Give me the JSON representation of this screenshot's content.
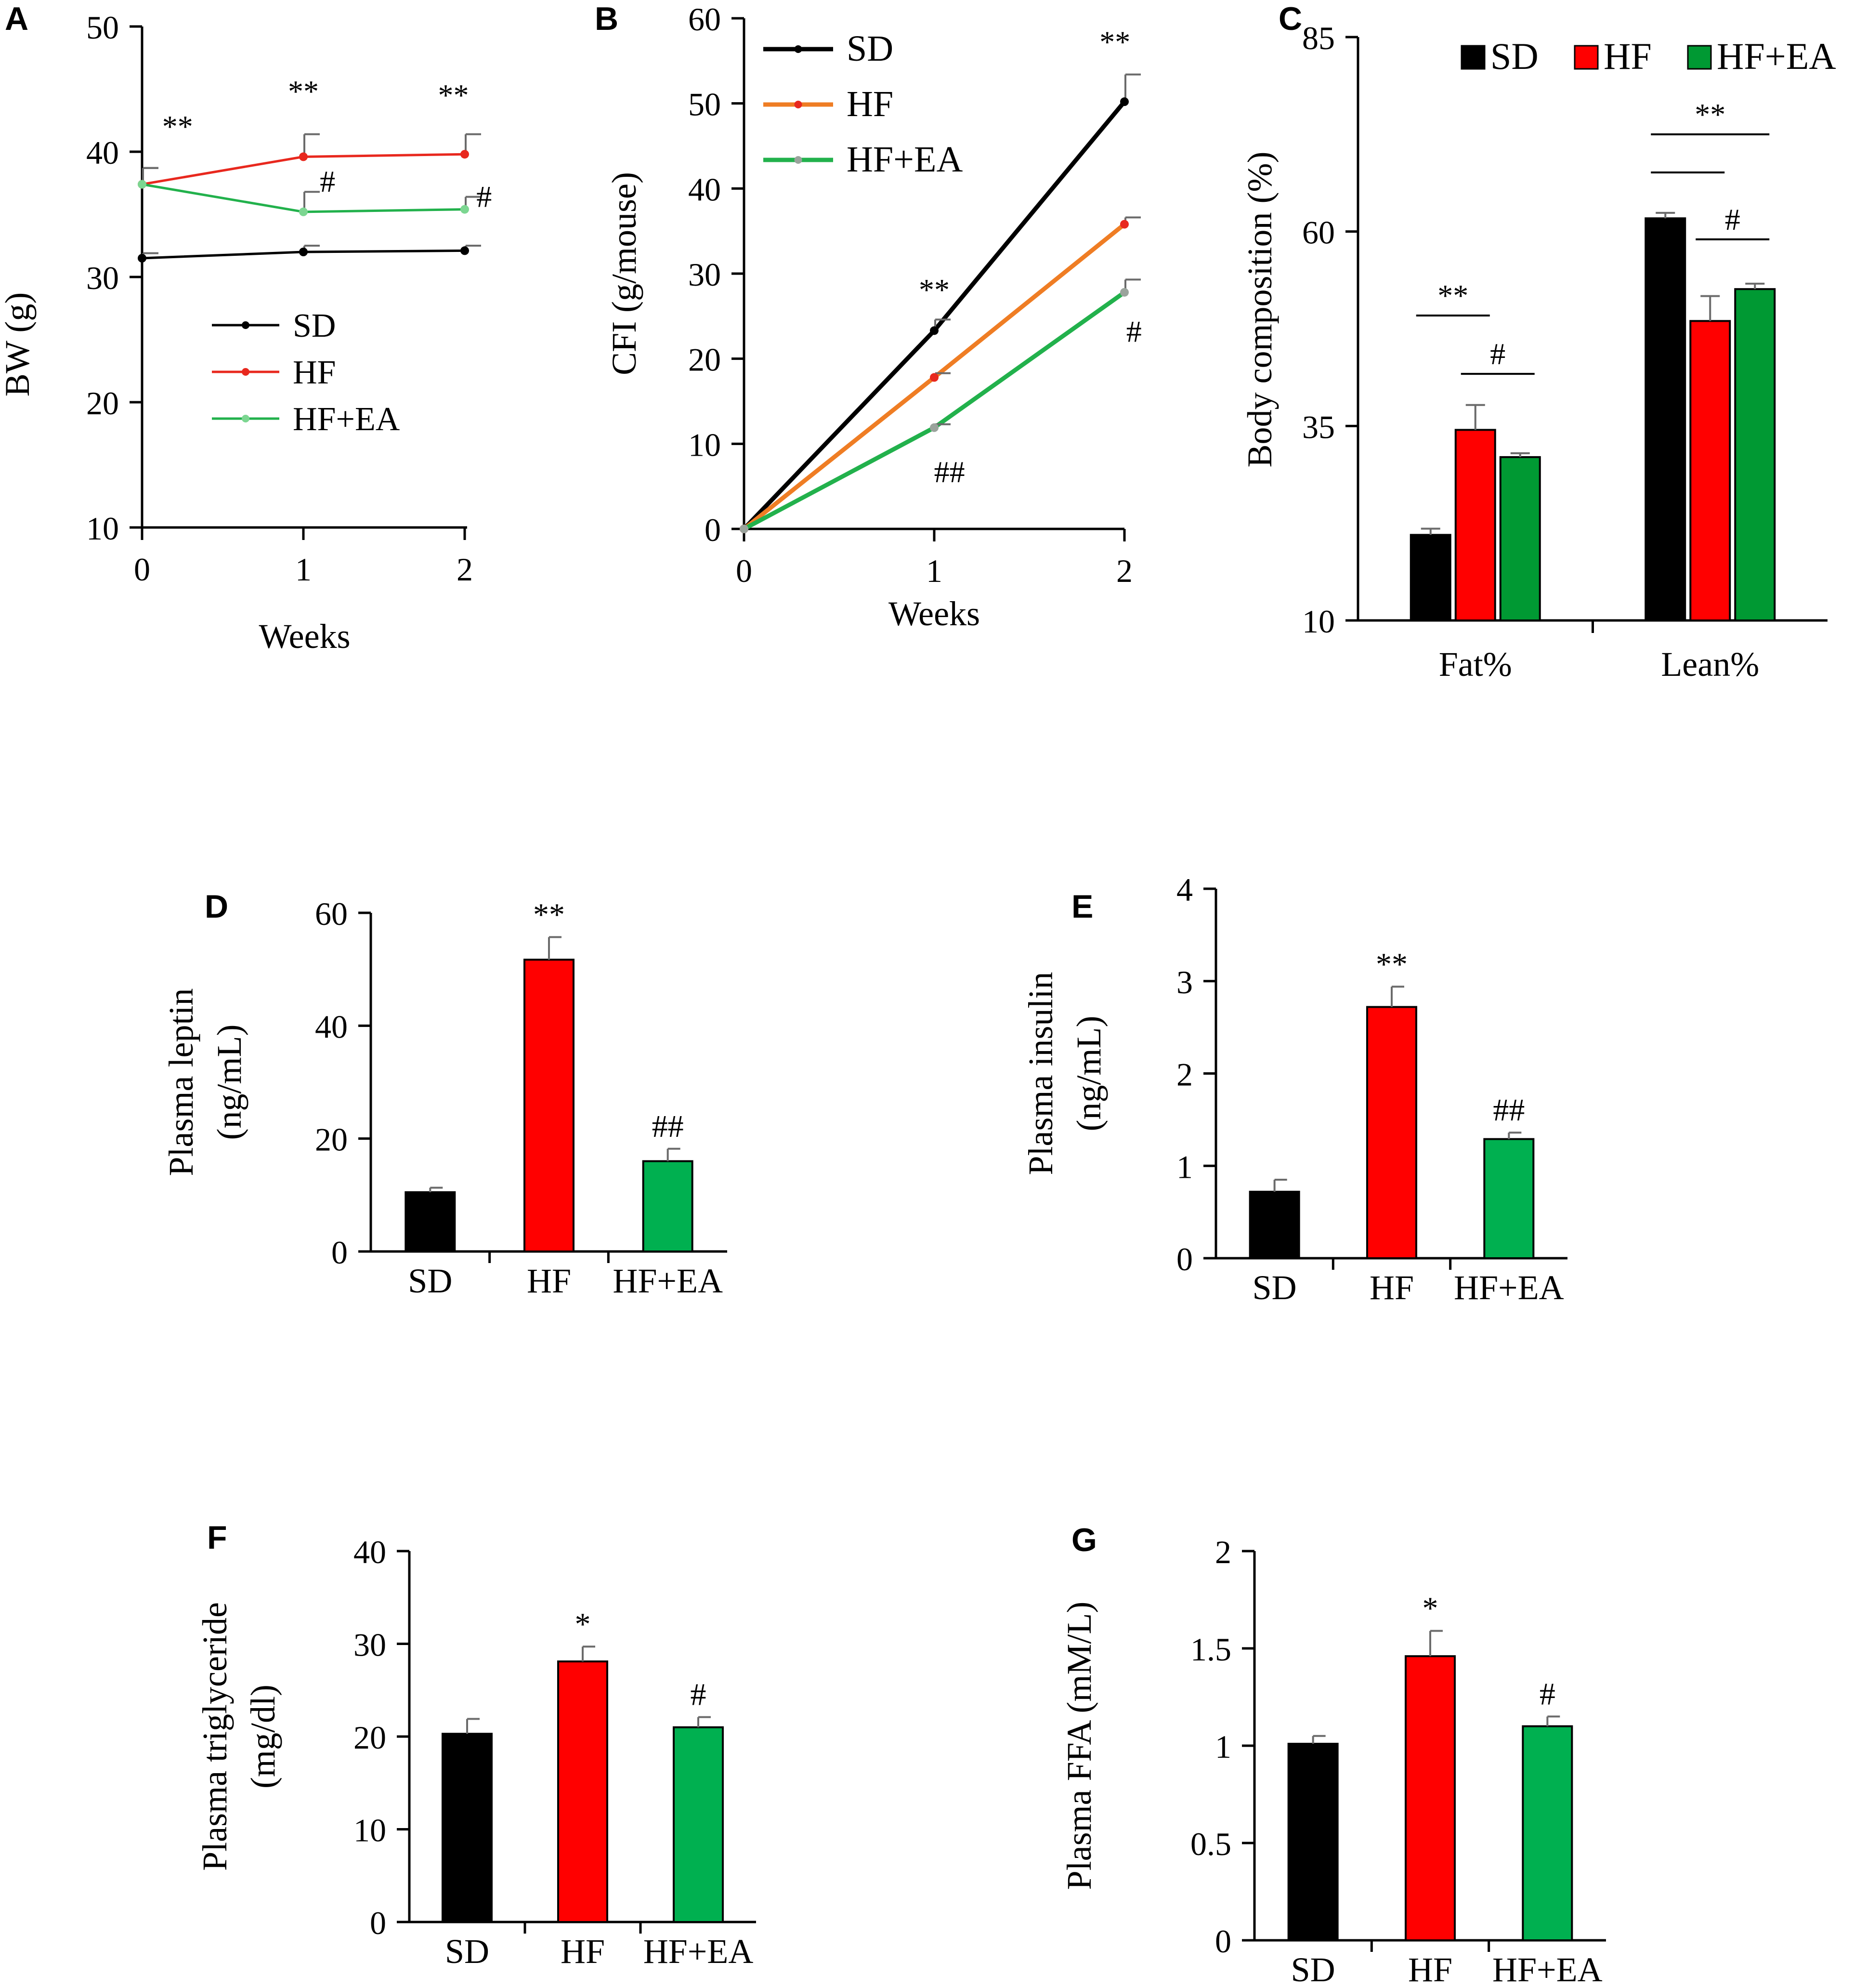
{
  "chart_data": [
    {
      "id": "A",
      "type": "line",
      "panel_label": "A",
      "ylabel": "BW (g)",
      "xlabel": "Weeks",
      "x": [
        0,
        1,
        2
      ],
      "xticks": [
        "0",
        "1",
        "2"
      ],
      "ylim": [
        10,
        50
      ],
      "yticks": [
        10,
        20,
        30,
        40,
        50
      ],
      "series": [
        {
          "name": "SD",
          "color": "#000000",
          "values": [
            31.5,
            32.0,
            32.1
          ],
          "err": [
            0.4,
            0.5,
            0.4
          ],
          "marker": "#000000"
        },
        {
          "name": "HF",
          "color": "#e8281e",
          "values": [
            37.4,
            39.6,
            39.8
          ],
          "err": [
            1.3,
            1.8,
            1.6
          ],
          "marker": "#e8281e"
        },
        {
          "name": "HF+EA",
          "color": "#22b14c",
          "values": [
            37.4,
            35.2,
            35.4
          ],
          "err": [
            1.3,
            1.6,
            1.0
          ],
          "marker": "#7cd691"
        }
      ],
      "annotations": [
        {
          "text": "**",
          "x": 0.22,
          "y": 41.2
        },
        {
          "text": "**",
          "x": 1.0,
          "y": 44.0
        },
        {
          "text": "**",
          "x": 1.93,
          "y": 43.7
        },
        {
          "text": "#",
          "x": 1.15,
          "y": 36.8
        },
        {
          "text": "#",
          "x": 2.12,
          "y": 35.6
        }
      ]
    },
    {
      "id": "B",
      "type": "line",
      "panel_label": "B",
      "ylabel": "CFI (g/mouse)",
      "xlabel": "Weeks",
      "x": [
        0,
        1,
        2
      ],
      "xticks": [
        "0",
        "1",
        "2"
      ],
      "ylim": [
        0,
        60
      ],
      "yticks": [
        0,
        10,
        20,
        30,
        40,
        50,
        60
      ],
      "series": [
        {
          "name": "SD",
          "color": "#000000",
          "values": [
            0,
            23.3,
            50.2
          ],
          "err": [
            0,
            1.3,
            3.2
          ],
          "marker": "#000000"
        },
        {
          "name": "HF",
          "color": "#ef7d24",
          "values": [
            0,
            17.8,
            35.8
          ],
          "err": [
            0,
            0.5,
            0.8
          ],
          "marker": "#e8281e"
        },
        {
          "name": "HF+EA",
          "color": "#22b14c",
          "values": [
            0,
            11.9,
            27.8
          ],
          "err": [
            0,
            0.4,
            1.5
          ],
          "marker": "#9aa39c"
        }
      ],
      "annotations": [
        {
          "text": "**",
          "x": 1.0,
          "y": 26.9
        },
        {
          "text": "**",
          "x": 1.95,
          "y": 56.0
        },
        {
          "text": "##",
          "x": 1.08,
          "y": 5.5
        },
        {
          "text": "#",
          "x": 2.05,
          "y": 22.0
        }
      ]
    },
    {
      "id": "C",
      "type": "bar",
      "panel_label": "C",
      "ylabel": "Body composition (%)",
      "categories": [
        "Fat%",
        "Lean%"
      ],
      "ylim": [
        10,
        85
      ],
      "yticks": [
        10,
        35,
        60,
        85
      ],
      "series": [
        {
          "name": "SD",
          "color": "#000000",
          "values": [
            21.0,
            61.7
          ],
          "err": [
            0.8,
            0.7
          ]
        },
        {
          "name": "HF",
          "color": "#ff0000",
          "values": [
            34.5,
            48.5
          ],
          "err": [
            3.2,
            3.2
          ]
        },
        {
          "name": "HF+EA",
          "color": "#009933",
          "values": [
            31.0,
            52.6
          ],
          "err": [
            0.5,
            0.7
          ]
        }
      ],
      "brackets": [
        {
          "category": 0,
          "from": 0,
          "to": 1,
          "y": 49.2,
          "label": "**"
        },
        {
          "category": 0,
          "from": 1,
          "to": 2,
          "y": 41.7,
          "label": "#"
        },
        {
          "category": 1,
          "from": 0,
          "to": 2,
          "y": 72.5,
          "label": "**"
        },
        {
          "category": 1,
          "from": 0,
          "to": 1,
          "y": 67.6,
          "label": ""
        },
        {
          "category": 1,
          "from": 1,
          "to": 2,
          "y": 59.0,
          "label": "#"
        }
      ]
    },
    {
      "id": "D",
      "type": "bar",
      "panel_label": "D",
      "ylabel": [
        "Plasma leptin",
        "(ng/mL)"
      ],
      "categories": [
        "SD",
        "HF",
        "HF+EA"
      ],
      "ylim": [
        0,
        60
      ],
      "yticks": [
        0,
        20,
        40,
        60
      ],
      "values": [
        10.5,
        51.7,
        16.0
      ],
      "err": [
        0.8,
        4.0,
        2.2
      ],
      "colors": [
        "#000000",
        "#ff0000",
        "#00b050"
      ],
      "labels": [
        "",
        "**",
        "##"
      ]
    },
    {
      "id": "E",
      "type": "bar",
      "panel_label": "E",
      "ylabel": [
        "Plasma insulin",
        "(ng/mL)"
      ],
      "categories": [
        "SD",
        "HF",
        "HF+EA"
      ],
      "ylim": [
        0,
        4
      ],
      "yticks": [
        0,
        1,
        2,
        3,
        4
      ],
      "values": [
        0.72,
        2.72,
        1.29
      ],
      "err": [
        0.13,
        0.22,
        0.07
      ],
      "colors": [
        "#000000",
        "#ff0000",
        "#00b050"
      ],
      "labels": [
        "",
        "**",
        "##"
      ]
    },
    {
      "id": "F",
      "type": "bar",
      "panel_label": "F",
      "ylabel": [
        "Plasma triglyceride",
        "(mg/dl)"
      ],
      "categories": [
        "SD",
        "HF",
        "HF+EA"
      ],
      "ylim": [
        0,
        40
      ],
      "yticks": [
        0,
        10,
        20,
        30,
        40
      ],
      "values": [
        20.3,
        28.1,
        21.0
      ],
      "err": [
        1.6,
        1.6,
        1.1
      ],
      "colors": [
        "#000000",
        "#ff0000",
        "#00b050"
      ],
      "labels": [
        "",
        "*",
        "#"
      ]
    },
    {
      "id": "G",
      "type": "bar",
      "panel_label": "G",
      "ylabel": [
        "Plasma FFA (mM/L)"
      ],
      "categories": [
        "SD",
        "HF",
        "HF+EA"
      ],
      "ylim": [
        0,
        2
      ],
      "yticks": [
        "0",
        "0.5",
        "1",
        "1.5",
        "2"
      ],
      "values": [
        1.01,
        1.46,
        1.1
      ],
      "err": [
        0.04,
        0.13,
        0.05
      ],
      "colors": [
        "#000000",
        "#ff0000",
        "#00b050"
      ],
      "labels": [
        "",
        "*",
        "#"
      ]
    }
  ]
}
